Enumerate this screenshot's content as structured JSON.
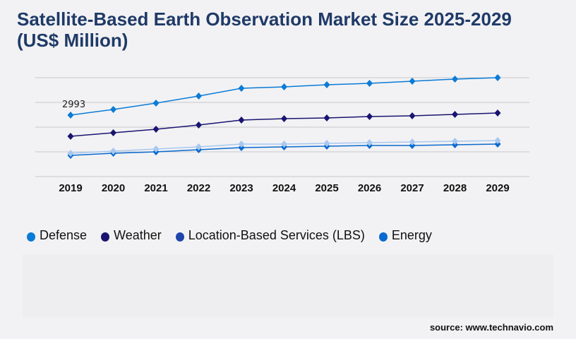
{
  "title": "Satellite-Based Earth Observation Market Size 2025-2029 (US$ Million)",
  "source": "source: www.technavio.com",
  "chart_data": {
    "type": "line",
    "title": "Satellite-Based Earth Observation Market Size 2025-2029 (US$ Million)",
    "categories": [
      "2019",
      "2020",
      "2021",
      "2022",
      "2023",
      "2024",
      "2025",
      "2026",
      "2027",
      "2028",
      "2029"
    ],
    "ylim": [
      0,
      4816
    ],
    "grid": true,
    "legend_position": "bottom",
    "annotations": [
      {
        "series": "Defense",
        "x": "2019",
        "text": "2993"
      }
    ],
    "series": [
      {
        "name": "Defense",
        "color": "#0a7bd6",
        "legend_color": "#0a7bd6",
        "values": [
          2993,
          3268,
          3578,
          3922,
          4300,
          4369,
          4472,
          4541,
          4644,
          4747,
          4816
        ]
      },
      {
        "name": "Weather",
        "color": "#1a1470",
        "legend_color": "#1a1470",
        "values": [
          1961,
          2133,
          2305,
          2511,
          2752,
          2821,
          2855,
          2924,
          2958,
          3027,
          3096
        ]
      },
      {
        "name": "Location-Based Services (LBS)",
        "color": "#a8c8f0",
        "legend_color": "#1f45ad",
        "values": [
          1135,
          1238,
          1342,
          1445,
          1582,
          1582,
          1617,
          1651,
          1686,
          1720,
          1754
        ]
      },
      {
        "name": "Energy",
        "color": "#0a6ad0",
        "legend_color": "#0a6ad0",
        "values": [
          1032,
          1135,
          1204,
          1307,
          1410,
          1445,
          1479,
          1514,
          1514,
          1548,
          1582
        ]
      }
    ]
  }
}
